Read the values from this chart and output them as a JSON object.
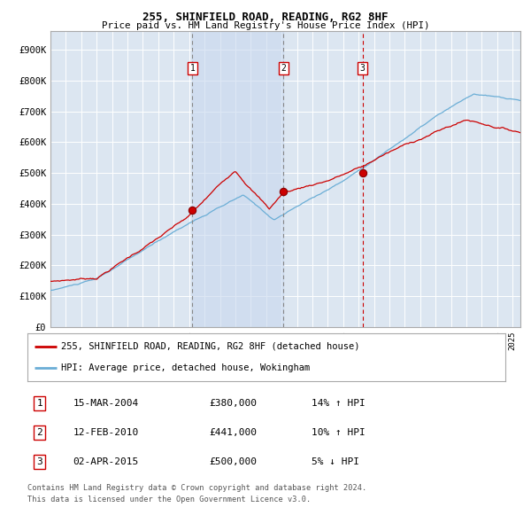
{
  "title": "255, SHINFIELD ROAD, READING, RG2 8HF",
  "subtitle": "Price paid vs. HM Land Registry's House Price Index (HPI)",
  "ylabel_ticks": [
    "£0",
    "£100K",
    "£200K",
    "£300K",
    "£400K",
    "£500K",
    "£600K",
    "£700K",
    "£800K",
    "£900K"
  ],
  "ytick_values": [
    0,
    100000,
    200000,
    300000,
    400000,
    500000,
    600000,
    700000,
    800000,
    900000
  ],
  "ylim": [
    0,
    960000
  ],
  "xlim_start": 1995.0,
  "xlim_end": 2025.5,
  "sale_dates_num": [
    2004.21,
    2010.12,
    2015.25
  ],
  "sale_prices": [
    380000,
    441000,
    500000
  ],
  "sale_labels": [
    "1",
    "2",
    "3"
  ],
  "vline1_x": 2004.21,
  "vline2_x": 2010.12,
  "vline3_x": 2015.25,
  "hpi_color": "#6baed6",
  "price_color": "#cc0000",
  "bg_color": "#dce6f1",
  "grid_color": "#ffffff",
  "outer_bg": "#ffffff",
  "legend_label_red": "255, SHINFIELD ROAD, READING, RG2 8HF (detached house)",
  "legend_label_blue": "HPI: Average price, detached house, Wokingham",
  "table_rows": [
    {
      "num": "1",
      "date": "15-MAR-2004",
      "price": "£380,000",
      "change": "14% ↑ HPI"
    },
    {
      "num": "2",
      "date": "12-FEB-2010",
      "price": "£441,000",
      "change": "10% ↑ HPI"
    },
    {
      "num": "3",
      "date": "02-APR-2015",
      "price": "£500,000",
      "change": "5% ↓ HPI"
    }
  ],
  "footnote1": "Contains HM Land Registry data © Crown copyright and database right 2024.",
  "footnote2": "This data is licensed under the Open Government Licence v3.0.",
  "shaded_region_start": 2004.21,
  "shaded_region_end": 2010.12
}
